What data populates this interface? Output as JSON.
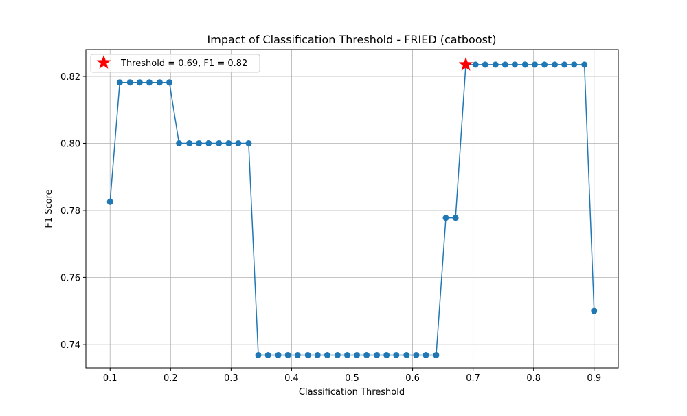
{
  "chart_data": {
    "type": "line",
    "title": "Impact of Classification Threshold - FRIED (catboost)",
    "xlabel": "Classification Threshold",
    "ylabel": "F1 Score",
    "xlim": [
      0.06,
      0.94
    ],
    "ylim": [
      0.733,
      0.828
    ],
    "grid": true,
    "x_ticks": [
      0.1,
      0.2,
      0.3,
      0.4,
      0.5,
      0.6,
      0.7,
      0.8,
      0.9
    ],
    "x_tick_labels": [
      "0.1",
      "0.2",
      "0.3",
      "0.4",
      "0.5",
      "0.6",
      "0.7",
      "0.8",
      "0.9"
    ],
    "y_ticks": [
      0.74,
      0.76,
      0.78,
      0.8,
      0.82
    ],
    "y_tick_labels": [
      "0.74",
      "0.76",
      "0.78",
      "0.80",
      "0.82"
    ],
    "series": [
      {
        "name": "F1 Score",
        "color": "#1f77b4",
        "x": [
          0.1,
          0.116,
          0.133,
          0.149,
          0.165,
          0.182,
          0.198,
          0.214,
          0.231,
          0.247,
          0.263,
          0.28,
          0.296,
          0.312,
          0.329,
          0.345,
          0.361,
          0.378,
          0.394,
          0.41,
          0.427,
          0.443,
          0.459,
          0.476,
          0.492,
          0.508,
          0.524,
          0.541,
          0.557,
          0.573,
          0.59,
          0.606,
          0.622,
          0.639,
          0.655,
          0.671,
          0.688,
          0.704,
          0.72,
          0.737,
          0.753,
          0.769,
          0.786,
          0.802,
          0.818,
          0.835,
          0.851,
          0.867,
          0.884,
          0.9
        ],
        "values": [
          0.7826,
          0.8182,
          0.8182,
          0.8182,
          0.8182,
          0.8182,
          0.8182,
          0.8,
          0.8,
          0.8,
          0.8,
          0.8,
          0.8,
          0.8,
          0.8,
          0.7368,
          0.7368,
          0.7368,
          0.7368,
          0.7368,
          0.7368,
          0.7368,
          0.7368,
          0.7368,
          0.7368,
          0.7368,
          0.7368,
          0.7368,
          0.7368,
          0.7368,
          0.7368,
          0.7368,
          0.7368,
          0.7368,
          0.7778,
          0.7778,
          0.8235,
          0.8235,
          0.8235,
          0.8235,
          0.8235,
          0.8235,
          0.8235,
          0.8235,
          0.8235,
          0.8235,
          0.8235,
          0.8235,
          0.8235,
          0.75
        ]
      }
    ],
    "best_point": {
      "x": 0.688,
      "y": 0.8235,
      "color": "#ff0000",
      "marker": "star"
    },
    "legend": {
      "location": "top-left",
      "label": "Threshold = 0.69, F1 = 0.82"
    }
  }
}
